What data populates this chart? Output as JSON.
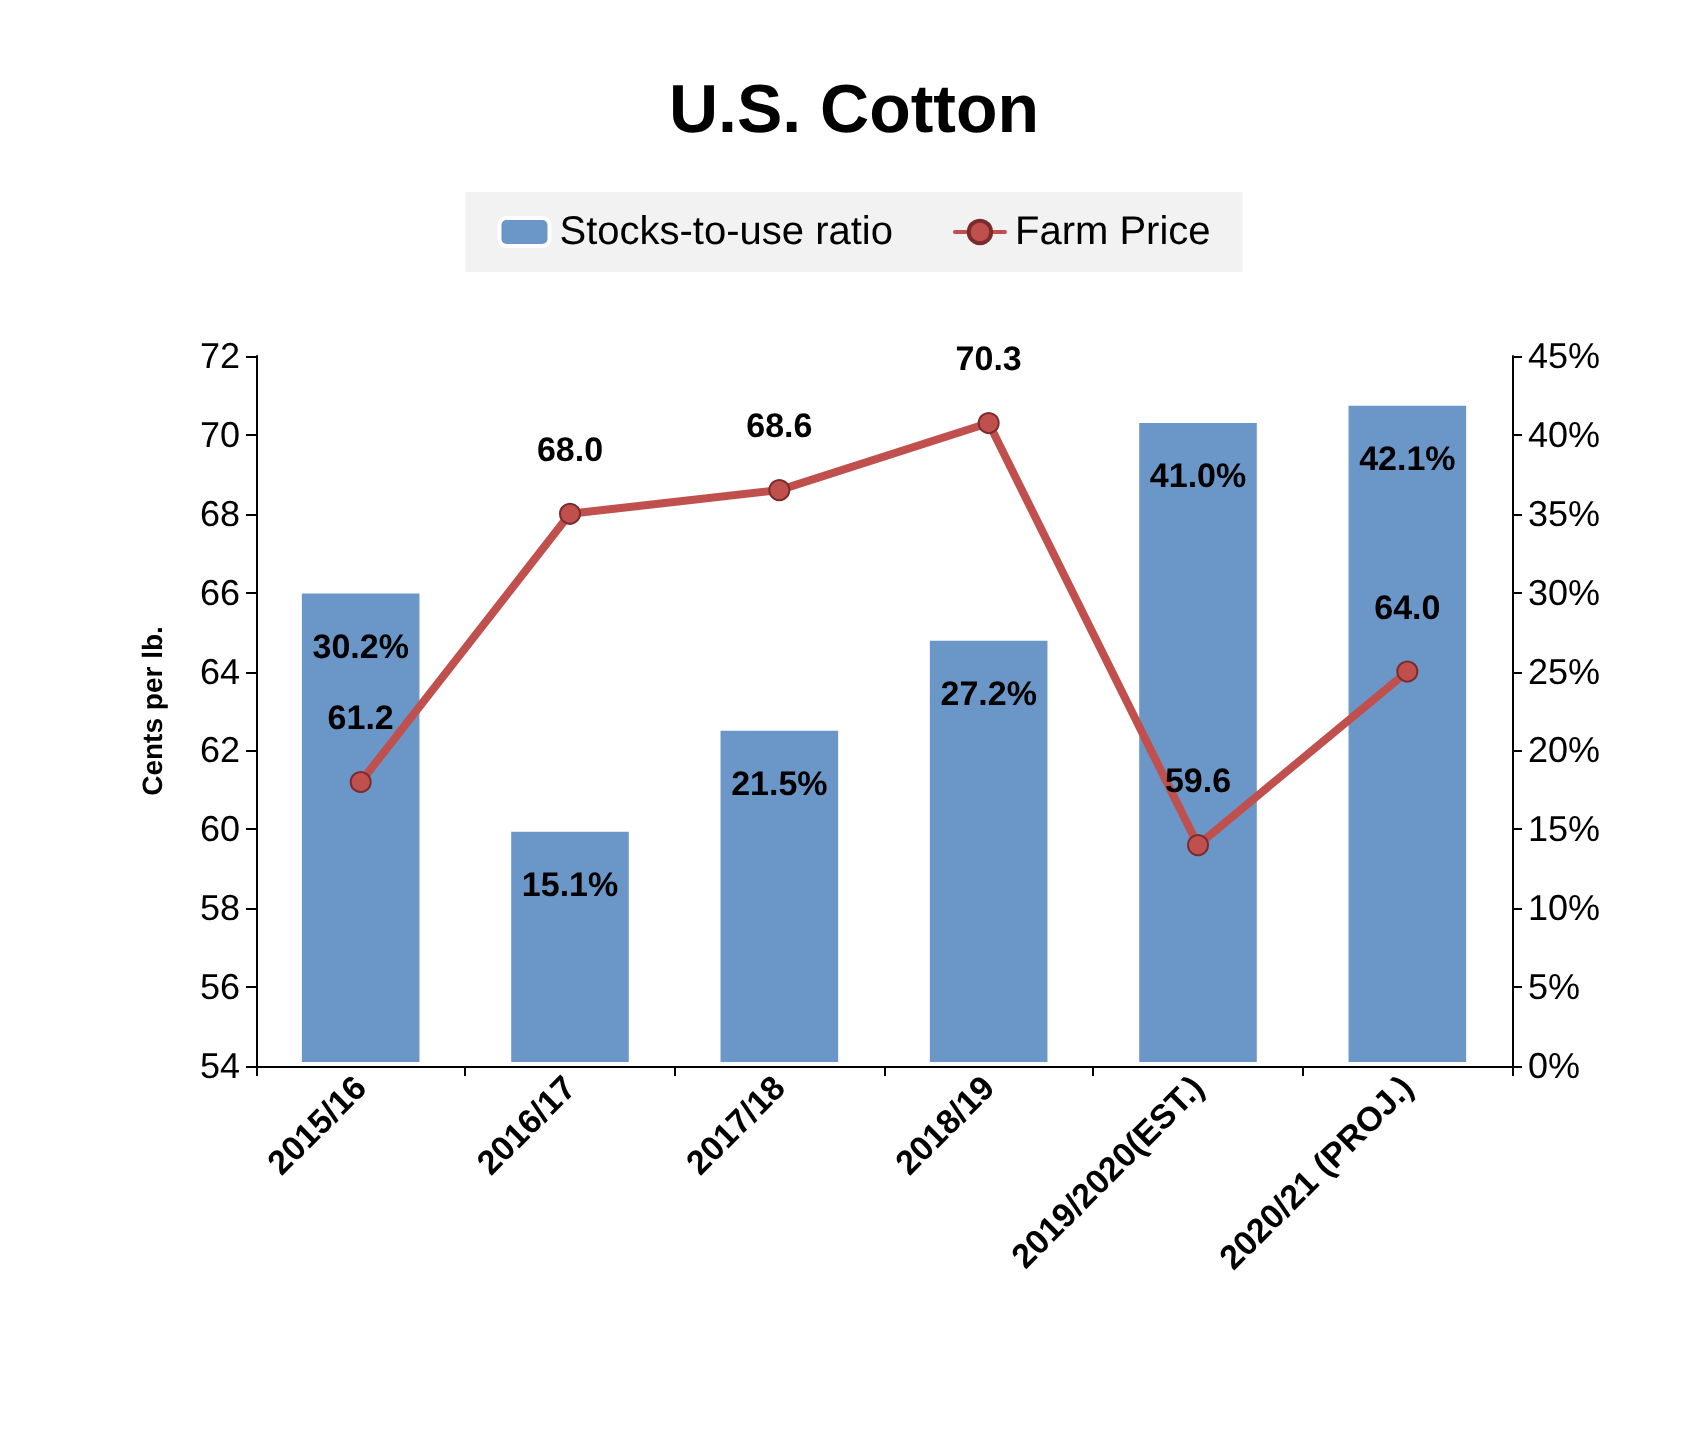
{
  "chart_data": {
    "type": "bar",
    "title": "U.S. Cotton",
    "ylabel": "Cents per lb.",
    "categories": [
      "2015/16",
      "2016/17",
      "2017/18",
      "2018/19",
      "2019/2020(EST.)",
      "2020/21 (PROJ.)"
    ],
    "series": [
      {
        "name": "Stocks-to-use ratio",
        "axis": "y2",
        "color": "#6a96c8",
        "values": [
          30.2,
          15.1,
          21.5,
          27.2,
          41.0,
          42.1
        ],
        "value_labels": [
          "30.2%",
          "15.1%",
          "21.5%",
          "27.2%",
          "41.0%",
          "42.1%"
        ]
      },
      {
        "name": "Farm Price",
        "type": "line",
        "axis": "y",
        "color": "#c0504d",
        "values": [
          61.2,
          68.0,
          68.6,
          70.3,
          59.6,
          64.0
        ],
        "value_labels": [
          "61.2",
          "68.0",
          "68.6",
          "70.3",
          "59.6",
          "64.0"
        ]
      }
    ],
    "ylim": [
      54,
      72
    ],
    "yticks": [
      54,
      56,
      58,
      60,
      62,
      64,
      66,
      68,
      70,
      72
    ],
    "y2lim": [
      0,
      45
    ],
    "y2ticks": [
      {
        "value": 0,
        "label": "0%"
      },
      {
        "value": 5,
        "label": "5%"
      },
      {
        "value": 10,
        "label": "10%"
      },
      {
        "value": 15,
        "label": "15%"
      },
      {
        "value": 20,
        "label": "20%"
      },
      {
        "value": 25,
        "label": "25%"
      },
      {
        "value": 30,
        "label": "30%"
      },
      {
        "value": 35,
        "label": "35%"
      },
      {
        "value": 40,
        "label": "40%"
      },
      {
        "value": 45,
        "label": "45%"
      }
    ],
    "legend": "top",
    "grid": false,
    "marker": "circle",
    "line_style": "solid"
  }
}
